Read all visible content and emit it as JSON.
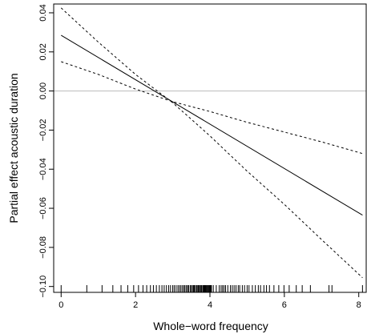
{
  "chart_data": {
    "type": "line",
    "xlabel": "Whole−word frequency",
    "ylabel": "Partial effect acoustic duration",
    "xlim": [
      -0.2,
      8.2
    ],
    "ylim": [
      -0.103,
      0.0445
    ],
    "xticks": [
      0,
      2,
      4,
      6,
      8
    ],
    "yticks": [
      -0.1,
      -0.08,
      -0.06,
      -0.04,
      -0.02,
      0.0,
      0.02,
      0.04
    ],
    "xtick_labels": [
      "0",
      "2",
      "4",
      "6",
      "8"
    ],
    "ytick_labels": [
      "−0.10",
      "−0.08",
      "−0.06",
      "−0.04",
      "−0.02",
      "0.00",
      "0.02",
      "0.04"
    ],
    "reference_line": {
      "y": 0.0,
      "color": "#bbbbbb"
    },
    "series": [
      {
        "style": "solid",
        "x": [
          0.0,
          8.1
        ],
        "y": [
          0.0285,
          -0.0635
        ]
      },
      {
        "style": "dashed",
        "x": [
          0.0,
          1.0,
          2.0,
          3.0,
          4.0,
          5.0,
          6.0,
          7.0,
          8.1
        ],
        "y": [
          0.0425,
          0.025,
          0.0085,
          -0.006,
          -0.023,
          -0.041,
          -0.058,
          -0.076,
          -0.0955
        ]
      },
      {
        "style": "dashed",
        "x": [
          0.0,
          1.0,
          2.0,
          3.0,
          4.0,
          5.0,
          6.0,
          7.0,
          8.1
        ],
        "y": [
          0.015,
          0.0085,
          0.001,
          -0.0055,
          -0.0105,
          -0.016,
          -0.021,
          -0.026,
          -0.032
        ]
      }
    ],
    "rug": [
      0.0,
      0.69,
      1.1,
      1.39,
      1.61,
      1.79,
      1.95,
      2.08,
      2.2,
      2.3,
      2.4,
      2.48,
      2.56,
      2.64,
      2.71,
      2.77,
      2.83,
      2.89,
      2.94,
      3.0,
      3.04,
      3.09,
      3.14,
      3.18,
      3.22,
      3.26,
      3.3,
      3.33,
      3.37,
      3.4,
      3.43,
      3.47,
      3.5,
      3.53,
      3.56,
      3.58,
      3.61,
      3.64,
      3.66,
      3.69,
      3.71,
      3.74,
      3.76,
      3.78,
      3.81,
      3.83,
      3.85,
      3.87,
      3.89,
      3.91,
      3.93,
      3.95,
      3.97,
      3.99,
      4.01,
      4.03,
      4.04,
      4.09,
      4.17,
      4.25,
      4.3,
      4.34,
      4.38,
      4.42,
      4.48,
      4.55,
      4.6,
      4.65,
      4.7,
      4.76,
      4.8,
      4.87,
      4.93,
      5.0,
      5.05,
      5.14,
      5.22,
      5.3,
      5.36,
      5.45,
      5.52,
      5.6,
      5.72,
      5.85,
      5.99,
      6.13,
      6.32,
      6.48,
      6.7,
      7.2,
      7.28,
      8.1
    ]
  }
}
